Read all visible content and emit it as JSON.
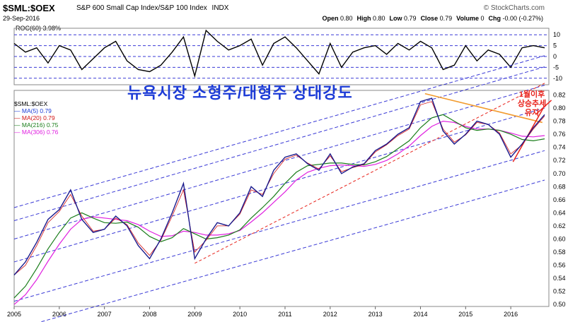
{
  "header": {
    "symbol": "$SML:$OEX",
    "name": "S&P 600 Small Cap Index/S&P 100 Index",
    "exchange": "INDX",
    "brand": "© StockCharts.com",
    "date": "29-Sep-2016",
    "ohlc": [
      {
        "label": "Open",
        "value": "0.80"
      },
      {
        "label": "High",
        "value": "0.80"
      },
      {
        "label": "Low",
        "value": "0.79"
      },
      {
        "label": "Close",
        "value": "0.79"
      },
      {
        "label": "Volume",
        "value": "0"
      },
      {
        "label": "Chg",
        "value": "-0.00 (-0.27%)"
      }
    ]
  },
  "roc_legend": "ROC(60) 3.98%",
  "overlay_title": "뉴욕시장 소형주/대형주 상대강도",
  "annotation": "1월이후 상승추세 유지",
  "price_legend": [
    {
      "label": "$SML:$OEX",
      "color": "#000000"
    },
    {
      "label": "MA(5) 0.79",
      "color": "#1c3bd6"
    },
    {
      "label": "MA(20) 0.79",
      "color": "#d21414"
    },
    {
      "label": "MA(216) 0.75",
      "color": "#1a7d1a"
    },
    {
      "label": "MA(306) 0.76",
      "color": "#e020e0"
    }
  ],
  "colors": {
    "price": "#1a1a8c",
    "ma20": "#d21414",
    "ma216": "#1a7d1a",
    "ma306": "#e020e0",
    "channel": "#3a3ad6",
    "trend_orange": "#f29b2e",
    "trend_red": "#e8231c",
    "roc_line": "#000000"
  },
  "chart_data": [
    {
      "type": "line",
      "title": "ROC(60)",
      "y_ticks": [
        10,
        5,
        0,
        -5,
        -10
      ],
      "ylim": [
        -13,
        13
      ],
      "x_range": [
        2005.0,
        2016.75
      ],
      "series": [
        {
          "name": "ROC(60)",
          "x": [
            2005.0,
            2005.25,
            2005.5,
            2005.75,
            2006.0,
            2006.25,
            2006.5,
            2006.75,
            2007.0,
            2007.25,
            2007.5,
            2007.75,
            2008.0,
            2008.25,
            2008.5,
            2008.75,
            2009.0,
            2009.25,
            2009.5,
            2009.75,
            2010.0,
            2010.25,
            2010.5,
            2010.75,
            2011.0,
            2011.25,
            2011.5,
            2011.75,
            2012.0,
            2012.25,
            2012.5,
            2012.75,
            2013.0,
            2013.25,
            2013.5,
            2013.75,
            2014.0,
            2014.25,
            2014.5,
            2014.75,
            2015.0,
            2015.25,
            2015.5,
            2015.75,
            2016.0,
            2016.25,
            2016.5,
            2016.75
          ],
          "values": [
            6,
            2,
            4,
            -3,
            5,
            3,
            -6,
            -1,
            4,
            7,
            -2,
            -6,
            -7,
            -4,
            2,
            9,
            -9,
            12,
            7,
            3,
            5,
            8,
            -4,
            6,
            9,
            4,
            -2,
            -8,
            6,
            -5,
            2,
            4,
            5,
            1,
            6,
            3,
            7,
            4,
            -6,
            -4,
            5,
            -2,
            3,
            1,
            -5,
            4,
            5,
            4
          ]
        }
      ]
    },
    {
      "type": "line",
      "title": "$SML:$OEX",
      "y_ticks": [
        0.5,
        0.52,
        0.54,
        0.56,
        0.58,
        0.6,
        0.62,
        0.64,
        0.66,
        0.68,
        0.7,
        0.72,
        0.74,
        0.76,
        0.78,
        0.8,
        0.82
      ],
      "ylim": [
        0.497,
        0.827
      ],
      "x_ticks": [
        "2005",
        "2006",
        "2007",
        "2008",
        "2009",
        "2010",
        "2011",
        "2012",
        "2013",
        "2014",
        "2015",
        "2016"
      ],
      "x_range": [
        2005.0,
        2016.75
      ],
      "series": [
        {
          "name": "$SML:$OEX",
          "x": [
            2005.0,
            2005.25,
            2005.5,
            2005.75,
            2006.0,
            2006.25,
            2006.5,
            2006.75,
            2007.0,
            2007.25,
            2007.5,
            2007.75,
            2008.0,
            2008.25,
            2008.5,
            2008.75,
            2009.0,
            2009.25,
            2009.5,
            2009.75,
            2010.0,
            2010.25,
            2010.5,
            2010.75,
            2011.0,
            2011.25,
            2011.5,
            2011.75,
            2012.0,
            2012.25,
            2012.5,
            2012.75,
            2013.0,
            2013.25,
            2013.5,
            2013.75,
            2014.0,
            2014.25,
            2014.5,
            2014.75,
            2015.0,
            2015.25,
            2015.5,
            2015.75,
            2016.0,
            2016.25,
            2016.5,
            2016.75
          ],
          "values": [
            0.545,
            0.565,
            0.595,
            0.63,
            0.645,
            0.675,
            0.63,
            0.61,
            0.615,
            0.635,
            0.62,
            0.59,
            0.57,
            0.6,
            0.64,
            0.685,
            0.57,
            0.6,
            0.625,
            0.62,
            0.64,
            0.68,
            0.665,
            0.705,
            0.725,
            0.73,
            0.715,
            0.705,
            0.73,
            0.7,
            0.71,
            0.715,
            0.735,
            0.745,
            0.76,
            0.77,
            0.81,
            0.815,
            0.765,
            0.745,
            0.76,
            0.78,
            0.775,
            0.76,
            0.725,
            0.745,
            0.77,
            0.79
          ]
        },
        {
          "name": "MA(20)",
          "x": [
            2005.0,
            2005.25,
            2005.5,
            2005.75,
            2006.0,
            2006.25,
            2006.5,
            2006.75,
            2007.0,
            2007.25,
            2007.5,
            2007.75,
            2008.0,
            2008.25,
            2008.5,
            2008.75,
            2009.0,
            2009.25,
            2009.5,
            2009.75,
            2010.0,
            2010.25,
            2010.5,
            2010.75,
            2011.0,
            2011.25,
            2011.5,
            2011.75,
            2012.0,
            2012.25,
            2012.5,
            2012.75,
            2013.0,
            2013.25,
            2013.5,
            2013.75,
            2014.0,
            2014.25,
            2014.5,
            2014.75,
            2015.0,
            2015.25,
            2015.5,
            2015.75,
            2016.0,
            2016.25,
            2016.5,
            2016.75
          ],
          "values": [
            0.545,
            0.56,
            0.59,
            0.625,
            0.642,
            0.668,
            0.635,
            0.612,
            0.615,
            0.632,
            0.622,
            0.594,
            0.575,
            0.598,
            0.635,
            0.675,
            0.58,
            0.598,
            0.62,
            0.62,
            0.638,
            0.675,
            0.668,
            0.7,
            0.722,
            0.728,
            0.716,
            0.707,
            0.727,
            0.703,
            0.709,
            0.714,
            0.733,
            0.744,
            0.758,
            0.768,
            0.805,
            0.81,
            0.768,
            0.748,
            0.759,
            0.778,
            0.775,
            0.762,
            0.73,
            0.744,
            0.768,
            0.788
          ]
        },
        {
          "name": "MA(216)",
          "x": [
            2005.0,
            2005.25,
            2005.5,
            2005.75,
            2006.0,
            2006.25,
            2006.5,
            2006.75,
            2007.0,
            2007.25,
            2007.5,
            2007.75,
            2008.0,
            2008.25,
            2008.5,
            2008.75,
            2009.0,
            2009.25,
            2009.5,
            2009.75,
            2010.0,
            2010.25,
            2010.5,
            2010.75,
            2011.0,
            2011.25,
            2011.5,
            2011.75,
            2012.0,
            2012.25,
            2012.5,
            2012.75,
            2013.0,
            2013.25,
            2013.5,
            2013.75,
            2014.0,
            2014.25,
            2014.5,
            2014.75,
            2015.0,
            2015.25,
            2015.5,
            2015.75,
            2016.0,
            2016.25,
            2016.5,
            2016.75
          ],
          "values": [
            0.51,
            0.528,
            0.555,
            0.585,
            0.61,
            0.632,
            0.64,
            0.632,
            0.625,
            0.624,
            0.626,
            0.618,
            0.604,
            0.596,
            0.602,
            0.616,
            0.608,
            0.6,
            0.602,
            0.606,
            0.614,
            0.632,
            0.648,
            0.665,
            0.685,
            0.702,
            0.712,
            0.714,
            0.716,
            0.716,
            0.714,
            0.713,
            0.718,
            0.726,
            0.738,
            0.75,
            0.77,
            0.785,
            0.79,
            0.78,
            0.77,
            0.766,
            0.768,
            0.766,
            0.76,
            0.752,
            0.75,
            0.753
          ]
        },
        {
          "name": "MA(306)",
          "x": [
            2005.0,
            2005.25,
            2005.5,
            2005.75,
            2006.0,
            2006.25,
            2006.5,
            2006.75,
            2007.0,
            2007.25,
            2007.5,
            2007.75,
            2008.0,
            2008.25,
            2008.5,
            2008.75,
            2009.0,
            2009.25,
            2009.5,
            2009.75,
            2010.0,
            2010.25,
            2010.5,
            2010.75,
            2011.0,
            2011.25,
            2011.5,
            2011.75,
            2012.0,
            2012.25,
            2012.5,
            2012.75,
            2013.0,
            2013.25,
            2013.5,
            2013.75,
            2014.0,
            2014.25,
            2014.5,
            2014.75,
            2015.0,
            2015.25,
            2015.5,
            2015.75,
            2016.0,
            2016.25,
            2016.5,
            2016.75
          ],
          "values": [
            0.5,
            0.515,
            0.538,
            0.566,
            0.592,
            0.615,
            0.63,
            0.634,
            0.632,
            0.63,
            0.628,
            0.622,
            0.612,
            0.604,
            0.605,
            0.612,
            0.61,
            0.606,
            0.606,
            0.608,
            0.613,
            0.626,
            0.64,
            0.656,
            0.672,
            0.69,
            0.702,
            0.708,
            0.712,
            0.713,
            0.712,
            0.711,
            0.714,
            0.72,
            0.73,
            0.742,
            0.758,
            0.772,
            0.78,
            0.778,
            0.772,
            0.768,
            0.768,
            0.766,
            0.762,
            0.757,
            0.756,
            0.758
          ]
        }
      ]
    }
  ]
}
